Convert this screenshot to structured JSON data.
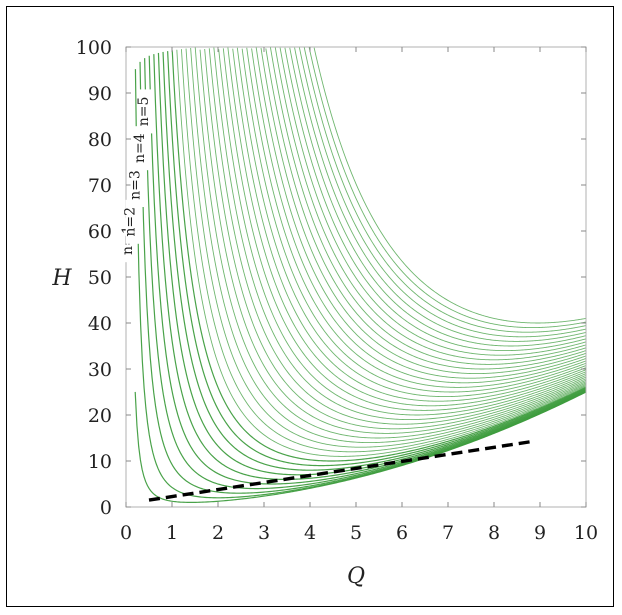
{
  "chart_data": {
    "type": "line",
    "title": "",
    "xlabel": "Q",
    "ylabel": "H",
    "xlim": [
      0,
      10
    ],
    "ylim": [
      0,
      100
    ],
    "xticks": [
      "0",
      "1",
      "2",
      "3",
      "4",
      "5",
      "6",
      "7",
      "8",
      "9",
      "10"
    ],
    "yticks": [
      "0",
      "10",
      "20",
      "30",
      "40",
      "50",
      "60",
      "70",
      "80",
      "90",
      "100"
    ],
    "grid": false,
    "curve_family": {
      "count": 40,
      "color": "#3f9d3f",
      "formula_note": "H = Q^2/4 + n^2/Q^2 (n = 1..40), clipped at Q = 10 and H = 100",
      "labels": [
        "n=1",
        "n=2",
        "n=3",
        "n=4",
        "n=5"
      ]
    },
    "series": [
      {
        "name": "",
        "style": "dashed",
        "color": "#000000",
        "x": [
          0.5,
          8.8
        ],
        "y": [
          1.5,
          14.2
        ]
      }
    ]
  }
}
